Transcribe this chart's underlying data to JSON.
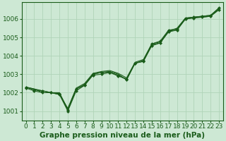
{
  "background_color": "#cde8d4",
  "grid_color": "#b0d4b8",
  "line_color": "#1a5c1a",
  "marker_color": "#1a5c1a",
  "xlabel": "Graphe pression niveau de la mer (hPa)",
  "ylim": [
    1000.5,
    1006.9
  ],
  "xlim": [
    -0.5,
    23.5
  ],
  "yticks": [
    1001,
    1002,
    1003,
    1004,
    1005,
    1006
  ],
  "xticks": [
    0,
    1,
    2,
    3,
    4,
    5,
    6,
    7,
    8,
    9,
    10,
    11,
    12,
    13,
    14,
    15,
    16,
    17,
    18,
    19,
    20,
    21,
    22,
    23
  ],
  "series": [
    [
      1002.3,
      1002.2,
      1002.1,
      1002.0,
      1002.0,
      1001.1,
      1002.2,
      1002.4,
      1003.0,
      1003.1,
      1003.15,
      1003.0,
      1002.7,
      1003.6,
      1003.7,
      1004.6,
      1004.7,
      1005.35,
      1005.4,
      1006.0,
      1006.1,
      1006.1,
      1006.15,
      1006.55
    ],
    [
      1002.3,
      1002.15,
      1002.1,
      1002.0,
      1001.95,
      1001.05,
      1002.2,
      1002.45,
      1003.0,
      1003.1,
      1003.1,
      1002.9,
      1002.75,
      1003.6,
      1003.75,
      1004.65,
      1004.8,
      1005.4,
      1005.45,
      1006.05,
      1006.1,
      1006.15,
      1006.2,
      1006.6
    ],
    [
      1002.25,
      1002.1,
      1002.0,
      1002.0,
      1001.9,
      1001.0,
      1002.1,
      1002.4,
      1002.95,
      1003.0,
      1003.1,
      1002.95,
      1002.7,
      1003.6,
      1003.7,
      1004.55,
      1004.7,
      1005.3,
      1005.4,
      1006.0,
      1006.05,
      1006.1,
      1006.15,
      1006.5
    ],
    [
      1002.3,
      1002.2,
      1002.0,
      1002.0,
      1001.9,
      1001.15,
      1002.25,
      1002.5,
      1003.05,
      1003.15,
      1003.2,
      1003.05,
      1002.8,
      1003.65,
      1003.8,
      1004.65,
      1004.75,
      1005.35,
      1005.5,
      1006.05,
      1006.1,
      1006.15,
      1006.2,
      1006.6
    ]
  ],
  "marker_series_indices": [
    1,
    2
  ],
  "fontsize_label": 7.5,
  "fontsize_tick": 6.5,
  "fontsize_xlabel": 7.5
}
